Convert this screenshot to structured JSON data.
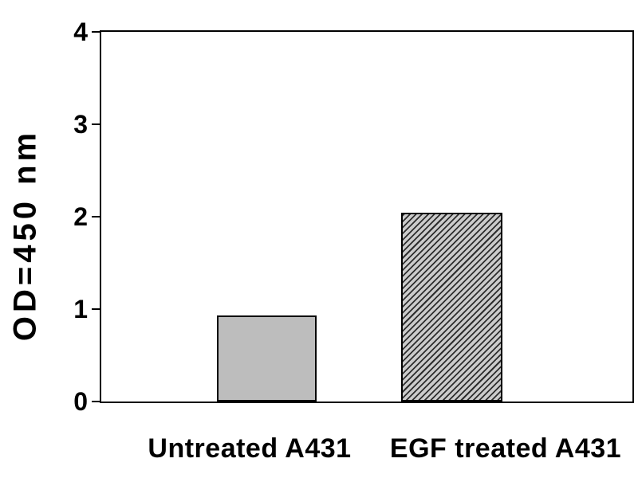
{
  "chart_data": {
    "type": "bar",
    "title": "",
    "xlabel": "",
    "ylabel": "OD=450 nm",
    "categories": [
      "Untreated A431",
      "EGF treated A431"
    ],
    "values": [
      0.93,
      2.04
    ],
    "ylim": [
      0,
      4
    ],
    "yticks": [
      0,
      1,
      2,
      3,
      4
    ],
    "grid": false,
    "legend": "none",
    "plot_border": true,
    "axis_color": "#000000",
    "background_color": "#ffffff",
    "text_color": "#000000",
    "bar_styles": [
      {
        "pattern": "solid",
        "fill": "#bdbdbd",
        "edge": "#000000"
      },
      {
        "pattern": "diagonal-hatch",
        "fill": "#cbcbcb",
        "hatch_color": "#2e2e2e",
        "edge": "#000000"
      }
    ]
  }
}
